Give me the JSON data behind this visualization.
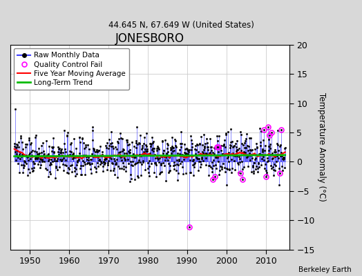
{
  "title": "JONESBORO",
  "subtitle": "44.645 N, 67.649 W (United States)",
  "ylabel": "Temperature Anomaly (°C)",
  "ylim": [
    -15,
    20
  ],
  "xlim": [
    1945,
    2016
  ],
  "yticks": [
    -15,
    -10,
    -5,
    0,
    5,
    10,
    15,
    20
  ],
  "xticks": [
    1950,
    1960,
    1970,
    1980,
    1990,
    2000,
    2010
  ],
  "fig_bg_color": "#d8d8d8",
  "plot_bg_color": "#ffffff",
  "raw_line_color": "#4040ff",
  "raw_marker_color": "#000000",
  "qc_fail_color": "#ff00ff",
  "moving_avg_color": "#ff0000",
  "trend_color": "#00bb00",
  "watermark": "Berkeley Earth",
  "start_year": 1946,
  "end_year": 2014,
  "seed": 137
}
